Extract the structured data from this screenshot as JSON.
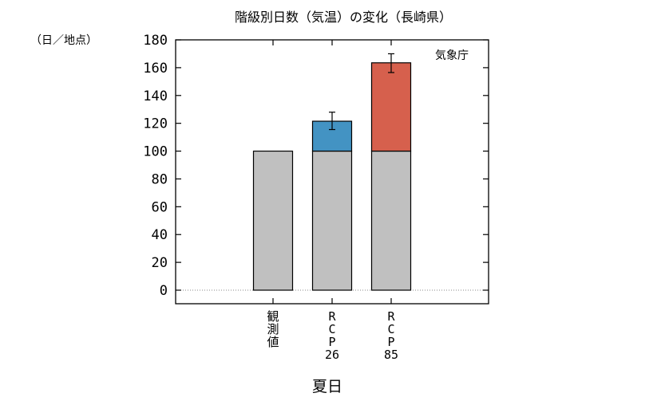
{
  "chart_data": {
    "type": "bar",
    "title": "階級別日数（気温）の変化（長崎県）",
    "unit_label": "（日／地点）",
    "source_label": "気象庁",
    "xlabel": "夏日",
    "ylabel": "",
    "ylim": [
      0,
      180
    ],
    "yticks": [
      0,
      20,
      40,
      60,
      80,
      100,
      120,
      140,
      160,
      180
    ],
    "categories": [
      {
        "lines": [
          "観",
          "測",
          "値"
        ]
      },
      {
        "lines": [
          "R",
          "C",
          "P",
          "26"
        ]
      },
      {
        "lines": [
          "R",
          "C",
          "P",
          "85"
        ]
      }
    ],
    "series": [
      {
        "name": "",
        "color": "#c0c0c0",
        "values": [
          100,
          100,
          100
        ]
      },
      {
        "name": "",
        "colors": [
          null,
          "#4393c3",
          "#d6604d"
        ],
        "values": [
          0,
          21.5,
          63.5
        ]
      }
    ],
    "error_bars": [
      null,
      {
        "low": 115.5,
        "high": 128
      },
      {
        "low": 156.5,
        "high": 170
      }
    ],
    "grid": false,
    "zero_line": "dotted"
  }
}
